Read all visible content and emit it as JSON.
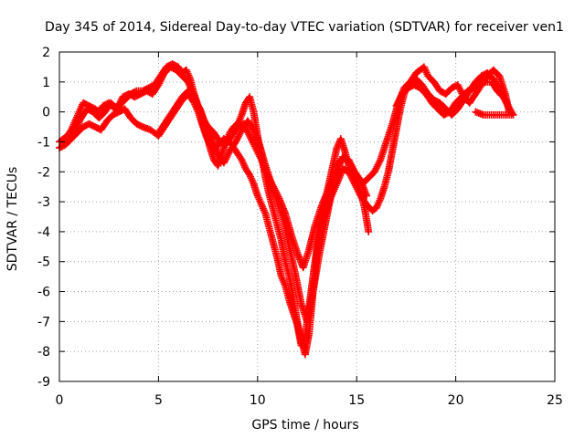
{
  "chart_data": {
    "type": "scatter",
    "title": "Day 345 of 2014, Sidereal Day-to-day VTEC variation (SDTVAR) for receiver ven1",
    "xlabel": "GPS time / hours",
    "ylabel": "SDTVAR / TECUs",
    "xlim": [
      0,
      25
    ],
    "ylim": [
      -9,
      2
    ],
    "x_ticks": [
      0,
      5,
      10,
      15,
      20,
      25
    ],
    "y_ticks": [
      -9,
      -8,
      -7,
      -6,
      -5,
      -4,
      -3,
      -2,
      -1,
      0,
      1,
      2
    ],
    "grid": true,
    "marker": "plus",
    "color": "#ff0000",
    "series": [
      {
        "points": [
          [
            0.0,
            -1.0
          ],
          [
            0.2,
            -0.9
          ],
          [
            0.4,
            -0.8
          ],
          [
            0.6,
            -0.6
          ],
          [
            0.8,
            -0.3
          ],
          [
            1.0,
            0.0
          ],
          [
            1.2,
            0.3
          ],
          [
            1.5,
            0.2
          ],
          [
            1.8,
            0.1
          ],
          [
            2.0,
            0.0
          ],
          [
            2.2,
            0.2
          ],
          [
            2.5,
            0.3
          ],
          [
            2.8,
            0.1
          ],
          [
            3.0,
            0.2
          ],
          [
            3.3,
            0.4
          ],
          [
            3.6,
            0.6
          ],
          [
            3.9,
            0.7
          ],
          [
            4.2,
            0.7
          ],
          [
            4.5,
            0.8
          ],
          [
            4.8,
            0.9
          ],
          [
            5.1,
            1.2
          ],
          [
            5.4,
            1.5
          ],
          [
            5.7,
            1.6
          ],
          [
            6.0,
            1.5
          ],
          [
            6.2,
            1.3
          ],
          [
            6.4,
            1.4
          ],
          [
            6.6,
            1.1
          ],
          [
            6.8,
            0.6
          ],
          [
            7.0,
            0.2
          ],
          [
            7.2,
            -0.3
          ],
          [
            7.4,
            -0.7
          ],
          [
            7.6,
            -1.2
          ],
          [
            7.8,
            -1.6
          ],
          [
            8.0,
            -1.8
          ],
          [
            8.2,
            -1.4
          ],
          [
            8.4,
            -1.0
          ],
          [
            8.6,
            -0.7
          ],
          [
            8.8,
            -0.5
          ],
          [
            9.0,
            -0.4
          ],
          [
            9.2,
            -0.1
          ],
          [
            9.4,
            0.3
          ],
          [
            9.6,
            0.5
          ],
          [
            9.8,
            0.0
          ],
          [
            10.0,
            -0.8
          ],
          [
            10.2,
            -1.5
          ],
          [
            10.4,
            -2.2
          ],
          [
            10.6,
            -2.8
          ],
          [
            10.8,
            -3.3
          ],
          [
            11.0,
            -3.8
          ],
          [
            11.2,
            -4.3
          ],
          [
            11.4,
            -5.0
          ],
          [
            11.6,
            -5.5
          ],
          [
            11.8,
            -6.2
          ],
          [
            12.0,
            -7.0
          ],
          [
            12.2,
            -7.6
          ],
          [
            12.4,
            -8.1
          ],
          [
            12.6,
            -7.4
          ],
          [
            12.8,
            -6.0
          ],
          [
            13.0,
            -4.7
          ],
          [
            13.2,
            -3.7
          ],
          [
            13.4,
            -3.0
          ],
          [
            13.6,
            -2.4
          ],
          [
            13.8,
            -1.8
          ],
          [
            14.0,
            -1.2
          ],
          [
            14.2,
            -0.9
          ],
          [
            14.4,
            -1.3
          ],
          [
            14.6,
            -1.8
          ],
          [
            14.8,
            -2.1
          ],
          [
            15.0,
            -2.4
          ],
          [
            15.2,
            -2.7
          ],
          [
            15.4,
            -3.2
          ],
          [
            15.6,
            -4.0
          ]
        ]
      },
      {
        "points": [
          [
            0.0,
            -1.2
          ],
          [
            0.3,
            -1.1
          ],
          [
            0.6,
            -0.9
          ],
          [
            0.9,
            -0.7
          ],
          [
            1.2,
            -0.5
          ],
          [
            1.5,
            -0.4
          ],
          [
            1.8,
            -0.5
          ],
          [
            2.1,
            -0.6
          ],
          [
            2.4,
            -0.3
          ],
          [
            2.7,
            -0.1
          ],
          [
            3.0,
            0.0
          ],
          [
            3.3,
            0.1
          ],
          [
            3.6,
            -0.2
          ],
          [
            3.9,
            -0.4
          ],
          [
            4.2,
            -0.5
          ],
          [
            4.6,
            -0.6
          ],
          [
            5.0,
            -0.8
          ],
          [
            5.3,
            -0.5
          ],
          [
            5.6,
            -0.2
          ],
          [
            5.9,
            0.1
          ],
          [
            6.2,
            0.4
          ],
          [
            6.5,
            0.6
          ],
          [
            6.8,
            0.3
          ],
          [
            7.0,
            0.0
          ],
          [
            7.2,
            -0.4
          ],
          [
            7.4,
            -0.8
          ],
          [
            7.6,
            -1.1
          ],
          [
            7.8,
            -1.3
          ],
          [
            8.0,
            -1.1
          ],
          [
            8.3,
            -0.9
          ],
          [
            8.6,
            -1.0
          ],
          [
            8.9,
            -1.3
          ],
          [
            9.2,
            -1.6
          ],
          [
            9.4,
            -1.9
          ],
          [
            9.6,
            -2.1
          ],
          [
            9.8,
            -2.4
          ],
          [
            10.0,
            -2.8
          ],
          [
            10.2,
            -3.1
          ],
          [
            10.4,
            -3.4
          ],
          [
            10.6,
            -3.9
          ],
          [
            10.8,
            -4.4
          ],
          [
            11.0,
            -4.9
          ],
          [
            11.2,
            -5.5
          ],
          [
            11.4,
            -5.8
          ],
          [
            11.6,
            -6.3
          ],
          [
            11.8,
            -6.7
          ],
          [
            12.0,
            -7.1
          ],
          [
            12.2,
            -7.8
          ],
          [
            12.4,
            -7.5
          ],
          [
            12.6,
            -6.5
          ],
          [
            12.8,
            -5.5
          ],
          [
            13.0,
            -4.5
          ],
          [
            13.2,
            -3.9
          ],
          [
            13.4,
            -3.5
          ],
          [
            13.6,
            -3.0
          ],
          [
            13.8,
            -2.7
          ],
          [
            14.0,
            -2.4
          ],
          [
            14.3,
            -1.9
          ],
          [
            14.6,
            -2.0
          ],
          [
            14.9,
            -2.4
          ],
          [
            15.2,
            -2.8
          ],
          [
            15.5,
            -3.1
          ],
          [
            15.8,
            -3.3
          ],
          [
            16.0,
            -3.2
          ],
          [
            16.2,
            -2.9
          ],
          [
            16.4,
            -2.5
          ],
          [
            16.6,
            -2.0
          ],
          [
            16.8,
            -1.3
          ],
          [
            17.0,
            -0.6
          ],
          [
            17.2,
            0.1
          ],
          [
            17.4,
            0.6
          ],
          [
            17.6,
            0.9
          ],
          [
            17.8,
            1.1
          ],
          [
            18.0,
            1.3
          ],
          [
            18.2,
            1.4
          ],
          [
            18.4,
            1.5
          ],
          [
            18.6,
            1.2
          ],
          [
            18.9,
            1.0
          ],
          [
            19.2,
            0.7
          ],
          [
            19.5,
            0.6
          ],
          [
            19.8,
            0.8
          ],
          [
            20.1,
            0.9
          ],
          [
            20.4,
            0.5
          ],
          [
            20.7,
            0.3
          ],
          [
            21.0,
            0.6
          ],
          [
            21.3,
            0.9
          ],
          [
            21.6,
            1.2
          ],
          [
            21.9,
            1.4
          ],
          [
            22.2,
            1.2
          ],
          [
            22.5,
            0.6
          ],
          [
            22.7,
            0.0
          ]
        ]
      },
      {
        "points": [
          [
            17.0,
            0.2
          ],
          [
            17.3,
            0.6
          ],
          [
            17.6,
            0.8
          ],
          [
            17.9,
            0.9
          ],
          [
            18.2,
            0.8
          ],
          [
            18.5,
            0.6
          ],
          [
            18.8,
            0.3
          ],
          [
            19.1,
            0.1
          ],
          [
            19.4,
            -0.1
          ],
          [
            19.7,
            0.0
          ],
          [
            20.0,
            0.3
          ],
          [
            20.3,
            0.5
          ],
          [
            20.6,
            0.7
          ],
          [
            20.9,
            0.8
          ],
          [
            21.2,
            0.9
          ],
          [
            21.5,
            1.0
          ],
          [
            21.8,
            1.0
          ],
          [
            22.1,
            0.7
          ],
          [
            22.4,
            0.5
          ],
          [
            22.7,
            0.1
          ],
          [
            22.9,
            -0.1
          ],
          [
            22.6,
            -0.1
          ],
          [
            22.2,
            -0.1
          ],
          [
            21.8,
            -0.1
          ],
          [
            21.4,
            -0.1
          ],
          [
            21.0,
            0.0
          ]
        ]
      },
      {
        "points": [
          [
            5.0,
            -0.7
          ],
          [
            5.3,
            -0.4
          ],
          [
            5.6,
            -0.1
          ],
          [
            5.9,
            0.2
          ],
          [
            6.2,
            0.5
          ],
          [
            6.5,
            0.7
          ],
          [
            6.8,
            0.4
          ],
          [
            7.1,
            0.1
          ],
          [
            7.3,
            -0.3
          ],
          [
            7.5,
            -0.5
          ],
          [
            7.8,
            -0.7
          ],
          [
            8.1,
            -1.0
          ],
          [
            8.4,
            -1.1
          ],
          [
            8.7,
            -0.8
          ],
          [
            9.0,
            -0.5
          ],
          [
            9.3,
            -0.4
          ],
          [
            9.6,
            -0.8
          ],
          [
            9.9,
            -1.2
          ],
          [
            10.2,
            -1.6
          ],
          [
            10.5,
            -2.1
          ],
          [
            10.8,
            -2.5
          ],
          [
            11.1,
            -2.9
          ],
          [
            11.4,
            -3.4
          ],
          [
            11.7,
            -4.1
          ],
          [
            12.0,
            -4.7
          ],
          [
            12.3,
            -5.2
          ],
          [
            12.6,
            -4.6
          ],
          [
            12.9,
            -3.8
          ],
          [
            13.2,
            -3.2
          ],
          [
            13.5,
            -2.7
          ],
          [
            13.8,
            -2.2
          ],
          [
            14.1,
            -1.7
          ],
          [
            14.4,
            -1.5
          ],
          [
            14.7,
            -1.8
          ],
          [
            15.0,
            -2.1
          ],
          [
            15.3,
            -2.4
          ],
          [
            15.6,
            -2.2
          ],
          [
            15.9,
            -2.0
          ],
          [
            16.2,
            -1.6
          ],
          [
            16.5,
            -1.0
          ],
          [
            16.8,
            -0.4
          ],
          [
            17.1,
            0.3
          ],
          [
            17.4,
            0.8
          ],
          [
            17.7,
            1.0
          ],
          [
            18.0,
            1.1
          ],
          [
            18.3,
            0.9
          ],
          [
            18.6,
            0.6
          ],
          [
            18.9,
            0.4
          ],
          [
            19.2,
            0.3
          ],
          [
            19.5,
            0.1
          ],
          [
            19.8,
            -0.1
          ],
          [
            20.1,
            0.1
          ],
          [
            20.4,
            0.4
          ],
          [
            20.7,
            0.7
          ],
          [
            21.0,
            1.0
          ],
          [
            21.3,
            1.2
          ],
          [
            21.6,
            1.3
          ],
          [
            21.9,
            1.1
          ],
          [
            22.2,
            0.8
          ],
          [
            22.5,
            0.4
          ],
          [
            22.8,
            0.0
          ]
        ]
      },
      {
        "points": [
          [
            0.5,
            -0.9
          ],
          [
            0.8,
            -0.6
          ],
          [
            1.1,
            -0.2
          ],
          [
            1.4,
            0.1
          ],
          [
            1.7,
            0.0
          ],
          [
            2.0,
            -0.2
          ],
          [
            2.3,
            0.0
          ],
          [
            2.6,
            0.3
          ],
          [
            2.9,
            0.1
          ],
          [
            3.2,
            0.5
          ],
          [
            3.5,
            0.6
          ],
          [
            3.8,
            0.5
          ],
          [
            4.1,
            0.6
          ],
          [
            4.4,
            0.7
          ],
          [
            4.7,
            0.6
          ],
          [
            5.0,
            0.9
          ],
          [
            5.3,
            1.3
          ],
          [
            5.6,
            1.5
          ],
          [
            5.9,
            1.4
          ],
          [
            6.2,
            1.2
          ],
          [
            6.5,
            1.0
          ],
          [
            6.8,
            0.5
          ],
          [
            7.1,
            0.0
          ],
          [
            7.4,
            -0.4
          ],
          [
            7.7,
            -0.9
          ],
          [
            8.0,
            -1.4
          ],
          [
            8.3,
            -1.7
          ],
          [
            8.6,
            -1.3
          ],
          [
            8.9,
            -1.0
          ],
          [
            9.2,
            -0.6
          ],
          [
            9.5,
            -0.3
          ],
          [
            9.8,
            -0.6
          ],
          [
            10.1,
            -1.1
          ],
          [
            10.4,
            -1.8
          ],
          [
            10.7,
            -2.4
          ],
          [
            11.0,
            -3.0
          ],
          [
            11.3,
            -3.6
          ],
          [
            11.6,
            -4.5
          ],
          [
            11.9,
            -5.4
          ],
          [
            12.2,
            -6.4
          ],
          [
            12.5,
            -7.0
          ],
          [
            12.8,
            -6.0
          ],
          [
            13.1,
            -4.8
          ],
          [
            13.4,
            -3.8
          ],
          [
            13.7,
            -2.8
          ],
          [
            14.0,
            -2.0
          ],
          [
            14.3,
            -1.5
          ],
          [
            14.6,
            -1.6
          ],
          [
            14.9,
            -2.0
          ],
          [
            15.2,
            -2.3
          ],
          [
            15.5,
            -2.8
          ]
        ]
      }
    ]
  }
}
